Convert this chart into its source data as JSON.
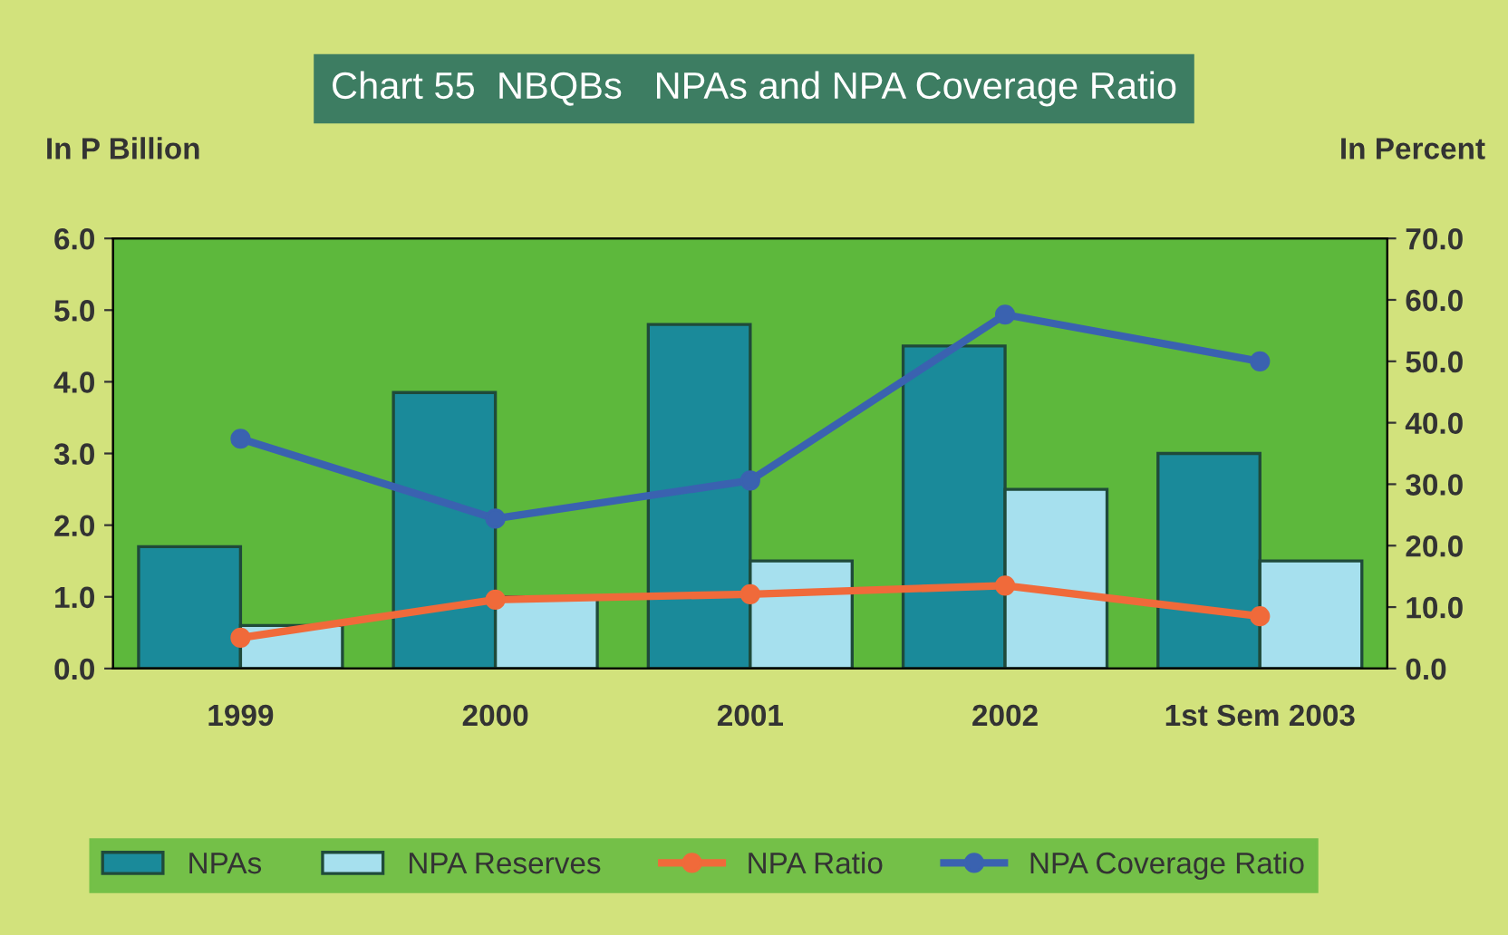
{
  "chart_data": {
    "type": "bar",
    "title": "Chart 55  NBQBs   NPAs and NPA Coverage Ratio",
    "ylabel": "In P Billion",
    "y2label": "In Percent",
    "categories": [
      "1999",
      "2000",
      "2001",
      "2002",
      "1st Sem 2003"
    ],
    "series": [
      {
        "name": "NPAs",
        "color": "#1a8a9a",
        "values": [
          1.7,
          3.85,
          4.8,
          4.5,
          3.0
        ]
      },
      {
        "name": "NPA Reserves",
        "color": "#a6e0ee",
        "values": [
          0.6,
          1.0,
          1.5,
          2.5,
          1.5
        ]
      },
      {
        "name": "NPA Ratio",
        "type": "line",
        "axis": "y2",
        "color": "#f06a3a",
        "values": [
          5.0,
          11.2,
          12.1,
          13.5,
          8.5
        ]
      },
      {
        "name": "NPA Coverage Ratio",
        "type": "line",
        "axis": "y2",
        "color": "#3a62b0",
        "values": [
          37.4,
          24.4,
          30.6,
          57.6,
          50.0
        ]
      }
    ],
    "ylim": [
      0,
      6
    ],
    "yticks": [
      {
        "value": 0,
        "label": "0.0"
      },
      {
        "value": 1,
        "label": "1.0"
      },
      {
        "value": 2,
        "label": "2.0"
      },
      {
        "value": 3,
        "label": "3.0"
      },
      {
        "value": 4,
        "label": "4.0"
      },
      {
        "value": 5,
        "label": "5.0"
      },
      {
        "value": 6,
        "label": "6.0"
      }
    ],
    "y2lim": [
      0,
      70
    ],
    "y2ticks": [
      {
        "value": 0,
        "label": "0.0"
      },
      {
        "value": 10,
        "label": "10.0"
      },
      {
        "value": 20,
        "label": "20.0"
      },
      {
        "value": 30,
        "label": "30.0"
      },
      {
        "value": 40,
        "label": "40.0"
      },
      {
        "value": 50,
        "label": "50.0"
      },
      {
        "value": 60,
        "label": "60.0"
      },
      {
        "value": 70,
        "label": "70.0"
      }
    ],
    "grid": false,
    "legend": "bottom",
    "marker": "circle",
    "line_style": "solid"
  }
}
